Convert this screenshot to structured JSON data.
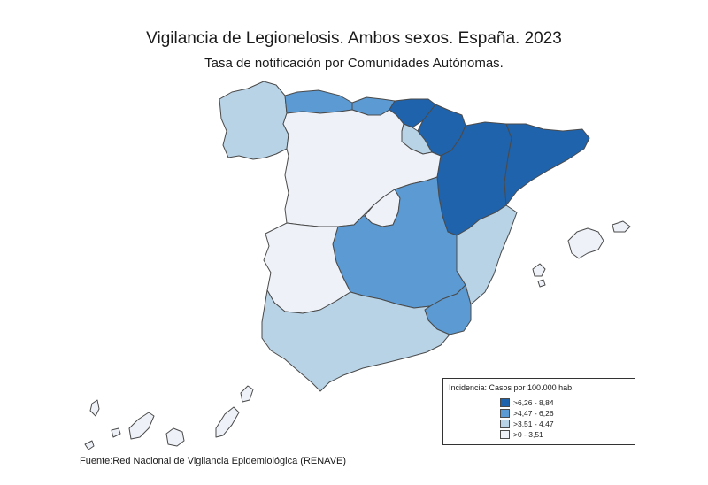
{
  "map": {
    "title": "Vigilancia de Legionelosis. Ambos sexos. España. 2023",
    "subtitle": "Tasa de notificación por Comunidades Autónomas.",
    "source": "Fuente:Red Nacional de Vigilancia Epidemiológica (RENAVE)"
  },
  "legend": {
    "title": "Incidencia: Casos por 100.000 hab.",
    "classes": [
      {
        "label": ">6,26 - 8,84",
        "color": "#1f63ad"
      },
      {
        "label": ">4,47 - 6,26",
        "color": "#5b9ad2"
      },
      {
        "label": ">3,51 - 4,47",
        "color": "#b9d3e6"
      },
      {
        "label": ">0 - 3,51",
        "color": "#eef2f8"
      }
    ]
  },
  "regions": [
    {
      "id": "galicia",
      "class": 2
    },
    {
      "id": "asturias",
      "class": 1
    },
    {
      "id": "cantabria",
      "class": 1
    },
    {
      "id": "pais-vasco",
      "class": 0
    },
    {
      "id": "navarra",
      "class": 0
    },
    {
      "id": "la-rioja",
      "class": 2
    },
    {
      "id": "aragon",
      "class": 0
    },
    {
      "id": "cataluna",
      "class": 0
    },
    {
      "id": "castilla-y-leon",
      "class": 3
    },
    {
      "id": "madrid",
      "class": 3
    },
    {
      "id": "castilla-la-mancha",
      "class": 1
    },
    {
      "id": "extremadura",
      "class": 3
    },
    {
      "id": "comunidad-valenciana",
      "class": 2
    },
    {
      "id": "region-de-murcia",
      "class": 1
    },
    {
      "id": "andalucia",
      "class": 2
    },
    {
      "id": "islas-baleares",
      "class": 3
    },
    {
      "id": "islas-canarias",
      "class": 3
    }
  ]
}
